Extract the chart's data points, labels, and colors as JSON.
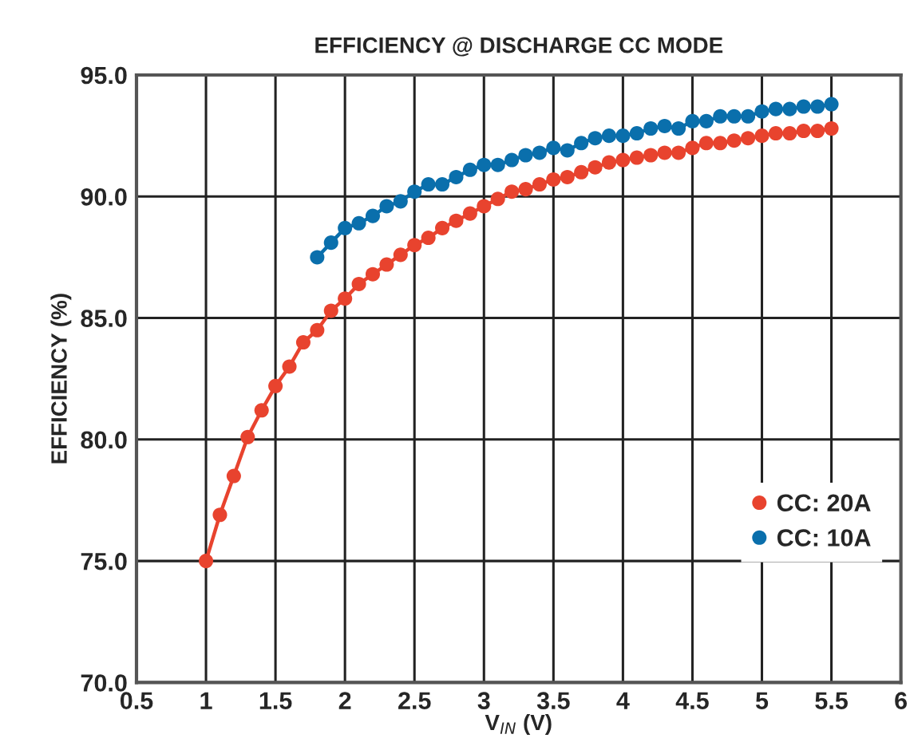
{
  "chart_data": {
    "type": "line",
    "title": "EFFICIENCY @ DISCHARGE CC MODE",
    "xlabel": "V$_{IN}$ (V)",
    "ylabel": "EFFICIENCY (%)",
    "xlim": [
      0.5,
      6
    ],
    "xticks": [
      0.5,
      1,
      1.5,
      2,
      2.5,
      3,
      3.5,
      4,
      4.5,
      5,
      5.5,
      6
    ],
    "ylim": [
      70,
      95
    ],
    "yticks": [
      {
        "value": 70,
        "label": "70.0"
      },
      {
        "value": 75,
        "label": "75.0"
      },
      {
        "value": 80,
        "label": "80.0"
      },
      {
        "value": 85,
        "label": "85.0"
      },
      {
        "value": 90,
        "label": "90.0"
      },
      {
        "value": 95,
        "label": "95.0"
      }
    ],
    "grid": true,
    "legend": "bottom right",
    "marker": "circle",
    "line_style": "solid",
    "series": [
      {
        "name": "CC: 20A",
        "color": "#e8432e",
        "x": [
          1.0,
          1.1,
          1.2,
          1.3,
          1.4,
          1.5,
          1.6,
          1.7,
          1.8,
          1.9,
          2.0,
          2.1,
          2.2,
          2.3,
          2.4,
          2.5,
          2.6,
          2.7,
          2.8,
          2.9,
          3.0,
          3.1,
          3.2,
          3.3,
          3.4,
          3.5,
          3.6,
          3.7,
          3.8,
          3.9,
          4.0,
          4.1,
          4.2,
          4.3,
          4.4,
          4.5,
          4.6,
          4.7,
          4.8,
          4.9,
          5.0,
          5.1,
          5.2,
          5.3,
          5.4,
          5.5
        ],
        "values": [
          75.0,
          76.9,
          78.5,
          80.1,
          81.2,
          82.2,
          83.0,
          84.0,
          84.5,
          85.3,
          85.8,
          86.4,
          86.8,
          87.2,
          87.6,
          88.0,
          88.3,
          88.7,
          89.0,
          89.3,
          89.6,
          89.9,
          90.2,
          90.3,
          90.5,
          90.7,
          90.8,
          91.0,
          91.2,
          91.4,
          91.5,
          91.6,
          91.7,
          91.8,
          91.8,
          92.0,
          92.2,
          92.2,
          92.3,
          92.4,
          92.5,
          92.6,
          92.6,
          92.7,
          92.7,
          92.8
        ]
      },
      {
        "name": "CC: 10A",
        "color": "#0a6fac",
        "x": [
          1.8,
          1.9,
          2.0,
          2.1,
          2.2,
          2.3,
          2.4,
          2.5,
          2.6,
          2.7,
          2.8,
          2.9,
          3.0,
          3.1,
          3.2,
          3.3,
          3.4,
          3.5,
          3.6,
          3.7,
          3.8,
          3.9,
          4.0,
          4.1,
          4.2,
          4.3,
          4.4,
          4.5,
          4.6,
          4.7,
          4.8,
          4.9,
          5.0,
          5.1,
          5.2,
          5.3,
          5.4,
          5.5
        ],
        "values": [
          87.5,
          88.1,
          88.7,
          88.9,
          89.2,
          89.6,
          89.8,
          90.2,
          90.5,
          90.5,
          90.8,
          91.1,
          91.3,
          91.3,
          91.5,
          91.7,
          91.8,
          92.0,
          91.9,
          92.2,
          92.4,
          92.5,
          92.5,
          92.6,
          92.8,
          92.9,
          92.8,
          93.1,
          93.1,
          93.3,
          93.3,
          93.3,
          93.5,
          93.6,
          93.6,
          93.7,
          93.7,
          93.8
        ]
      }
    ]
  }
}
